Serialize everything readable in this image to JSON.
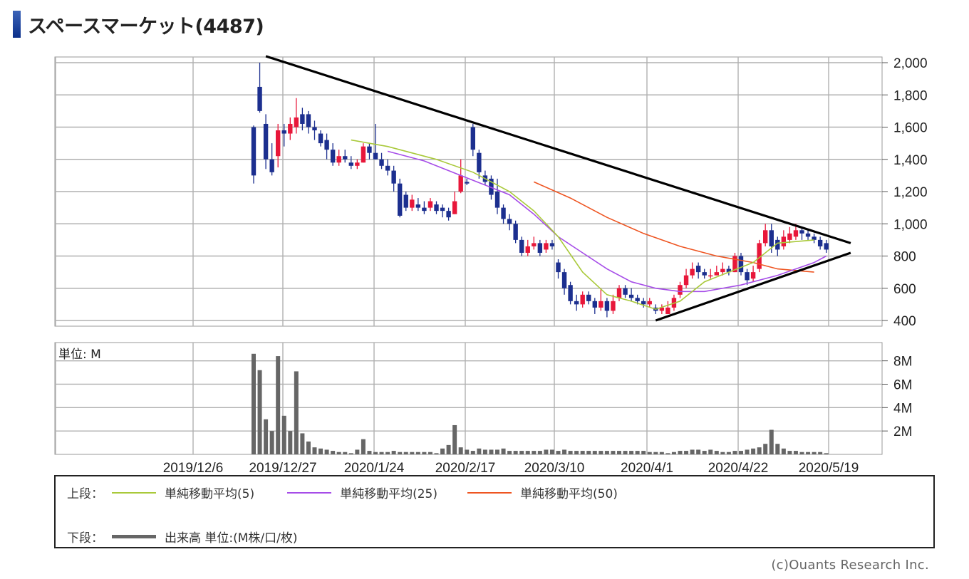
{
  "title": "スペースマーケット(4487)",
  "unit_label": "単位: M",
  "credit": "(c)Ouants Research Inc.",
  "legend": {
    "upper_label": "上段：",
    "lower_label": "下段：",
    "ma5": "単純移動平均(5)",
    "ma25": "単純移動平均(25)",
    "ma50": "単純移動平均(50)",
    "volume": "出来高 単位:(M株/口/枚)"
  },
  "colors": {
    "up": "#e8173a",
    "down": "#1c2f8f",
    "ma5": "#a9c93a",
    "ma25": "#a64de8",
    "ma50": "#ee5522",
    "volume": "#666666",
    "trendline": "#000000",
    "grid": "#b0b0b0"
  },
  "chart_data": [
    {
      "type": "candlestick",
      "y_ticks": [
        "2,000",
        "1,800",
        "1,600",
        "1,400",
        "1,200",
        "1,000",
        "800",
        "600",
        "400"
      ],
      "ylim": [
        400,
        2000
      ],
      "x_tick_labels": [
        "2019/12/6",
        "2019/12/27",
        "2020/1/24",
        "2020/2/17",
        "2020/3/10",
        "2020/4/1",
        "2020/4/22",
        "2020/5/19"
      ],
      "candles": [
        [
          1600,
          1300,
          1610,
          1250
        ],
        [
          1850,
          1700,
          2000,
          1690
        ],
        [
          1620,
          1400,
          1680,
          1340
        ],
        [
          1400,
          1320,
          1500,
          1300
        ],
        [
          1420,
          1580,
          1620,
          1350
        ],
        [
          1580,
          1560,
          1620,
          1480
        ],
        [
          1560,
          1620,
          1660,
          1520
        ],
        [
          1600,
          1660,
          1780,
          1560
        ],
        [
          1680,
          1620,
          1720,
          1580
        ],
        [
          1680,
          1600,
          1700,
          1560
        ],
        [
          1600,
          1580,
          1640,
          1520
        ],
        [
          1560,
          1500,
          1580,
          1480
        ],
        [
          1520,
          1460,
          1560,
          1400
        ],
        [
          1460,
          1380,
          1500,
          1360
        ],
        [
          1380,
          1420,
          1460,
          1360
        ],
        [
          1420,
          1400,
          1460,
          1380
        ],
        [
          1380,
          1360,
          1420,
          1340
        ],
        [
          1360,
          1380,
          1400,
          1340
        ],
        [
          1380,
          1480,
          1500,
          1380
        ],
        [
          1480,
          1440,
          1500,
          1400
        ],
        [
          1440,
          1400,
          1620,
          1400
        ],
        [
          1400,
          1360,
          1440,
          1340
        ],
        [
          1360,
          1330,
          1400,
          1300
        ],
        [
          1330,
          1250,
          1360,
          1200
        ],
        [
          1250,
          1050,
          1280,
          1040
        ],
        [
          1180,
          1100,
          1200,
          1080
        ],
        [
          1100,
          1150,
          1180,
          1080
        ],
        [
          1120,
          1100,
          1160,
          1080
        ],
        [
          1100,
          1080,
          1140,
          1060
        ],
        [
          1100,
          1140,
          1160,
          1080
        ],
        [
          1120,
          1080,
          1140,
          1060
        ],
        [
          1100,
          1080,
          1120,
          1040
        ],
        [
          1080,
          1040,
          1100,
          1020
        ],
        [
          1060,
          1140,
          1200,
          1060
        ],
        [
          1200,
          1300,
          1400,
          1190
        ],
        [
          1260,
          1250,
          1280,
          1240
        ],
        [
          1600,
          1460,
          1620,
          1420
        ],
        [
          1440,
          1320,
          1460,
          1280
        ],
        [
          1300,
          1260,
          1330,
          1240
        ],
        [
          1280,
          1180,
          1300,
          1150
        ],
        [
          1200,
          1100,
          1280,
          1060
        ],
        [
          1100,
          1030,
          1120,
          1000
        ],
        [
          1030,
          1000,
          1060,
          960
        ],
        [
          1000,
          900,
          1020,
          880
        ],
        [
          900,
          820,
          920,
          800
        ],
        [
          820,
          860,
          900,
          800
        ],
        [
          860,
          880,
          920,
          840
        ],
        [
          880,
          820,
          900,
          800
        ],
        [
          840,
          880,
          900,
          820
        ],
        [
          880,
          860,
          900,
          840
        ],
        [
          760,
          700,
          780,
          660
        ],
        [
          700,
          600,
          720,
          560
        ],
        [
          620,
          520,
          640,
          500
        ],
        [
          520,
          500,
          560,
          460
        ],
        [
          500,
          560,
          580,
          480
        ],
        [
          560,
          520,
          580,
          500
        ],
        [
          520,
          480,
          540,
          440
        ],
        [
          480,
          520,
          600,
          460
        ],
        [
          520,
          460,
          540,
          420
        ],
        [
          460,
          520,
          560,
          440
        ],
        [
          540,
          600,
          620,
          520
        ],
        [
          600,
          560,
          620,
          540
        ],
        [
          560,
          540,
          600,
          520
        ],
        [
          540,
          520,
          560,
          500
        ],
        [
          520,
          500,
          540,
          480
        ],
        [
          500,
          520,
          540,
          480
        ],
        [
          480,
          460,
          500,
          440
        ],
        [
          460,
          480,
          500,
          440
        ],
        [
          440,
          480,
          520,
          440
        ],
        [
          480,
          540,
          560,
          460
        ],
        [
          560,
          620,
          640,
          540
        ],
        [
          620,
          680,
          720,
          600
        ],
        [
          680,
          720,
          760,
          660
        ],
        [
          740,
          700,
          760,
          660
        ],
        [
          700,
          680,
          720,
          660
        ],
        [
          680,
          680,
          720,
          660
        ],
        [
          680,
          700,
          740,
          680
        ],
        [
          700,
          720,
          760,
          680
        ],
        [
          720,
          700,
          740,
          680
        ],
        [
          700,
          800,
          820,
          700
        ],
        [
          800,
          700,
          820,
          680
        ],
        [
          700,
          650,
          720,
          620
        ],
        [
          660,
          700,
          740,
          640
        ],
        [
          720,
          880,
          900,
          700
        ],
        [
          880,
          960,
          1000,
          860
        ],
        [
          960,
          860,
          1000,
          820
        ],
        [
          900,
          840,
          920,
          800
        ],
        [
          860,
          920,
          960,
          840
        ],
        [
          900,
          940,
          980,
          880
        ],
        [
          920,
          960,
          1000,
          900
        ],
        [
          960,
          940,
          980,
          900
        ],
        [
          940,
          920,
          960,
          900
        ],
        [
          920,
          900,
          940,
          880
        ],
        [
          900,
          860,
          920,
          840
        ],
        [
          880,
          840,
          900,
          820
        ]
      ],
      "ma5": [
        [
          16,
          1520
        ],
        [
          22,
          1480
        ],
        [
          30,
          1400
        ],
        [
          36,
          1320
        ],
        [
          42,
          1200
        ],
        [
          46,
          1080
        ],
        [
          50,
          920
        ],
        [
          54,
          700
        ],
        [
          58,
          560
        ],
        [
          62,
          520
        ],
        [
          66,
          470
        ],
        [
          70,
          520
        ],
        [
          74,
          640
        ],
        [
          78,
          700
        ],
        [
          82,
          760
        ],
        [
          86,
          880
        ],
        [
          92,
          900
        ]
      ],
      "ma25": [
        [
          22,
          1450
        ],
        [
          28,
          1390
        ],
        [
          34,
          1300
        ],
        [
          38,
          1240
        ],
        [
          42,
          1180
        ],
        [
          46,
          1060
        ],
        [
          50,
          920
        ],
        [
          54,
          820
        ],
        [
          58,
          720
        ],
        [
          62,
          640
        ],
        [
          66,
          600
        ],
        [
          70,
          580
        ],
        [
          74,
          580
        ],
        [
          80,
          620
        ],
        [
          86,
          680
        ],
        [
          92,
          760
        ],
        [
          94,
          800
        ]
      ],
      "ma50": [
        [
          46,
          1260
        ],
        [
          52,
          1160
        ],
        [
          58,
          1040
        ],
        [
          64,
          940
        ],
        [
          70,
          860
        ],
        [
          76,
          800
        ],
        [
          82,
          760
        ],
        [
          86,
          720
        ],
        [
          92,
          700
        ]
      ],
      "trendlines": [
        [
          [
            2,
            2040
          ],
          [
            98,
            880
          ]
        ],
        [
          [
            66,
            400
          ],
          [
            98,
            820
          ]
        ]
      ]
    },
    {
      "type": "bar",
      "name": "出来高",
      "y_ticks": [
        "8M",
        "6M",
        "4M",
        "2M"
      ],
      "ylim": [
        0,
        9
      ],
      "volume": [
        8.6,
        7.2,
        3.0,
        2.0,
        8.4,
        3.3,
        2.0,
        7.1,
        1.8,
        1.1,
        0.6,
        0.5,
        0.4,
        0.3,
        0.2,
        0.2,
        0.1,
        0.4,
        1.3,
        0.3,
        0.2,
        0.2,
        0.2,
        0.3,
        0.2,
        0.2,
        0.2,
        0.2,
        0.2,
        0.2,
        0.1,
        0.5,
        0.8,
        2.5,
        0.6,
        0.4,
        0.3,
        0.5,
        0.4,
        0.4,
        0.4,
        0.5,
        0.3,
        0.3,
        0.3,
        0.3,
        0.3,
        0.3,
        0.4,
        0.4,
        0.3,
        0.4,
        0.3,
        0.3,
        0.3,
        0.3,
        0.3,
        0.3,
        0.3,
        0.3,
        0.3,
        0.3,
        0.3,
        0.3,
        0.3,
        0.2,
        0.2,
        0.2,
        0.1,
        0.2,
        0.3,
        0.3,
        0.4,
        0.4,
        0.3,
        0.4,
        0.3,
        0.2,
        0.2,
        0.3,
        0.3,
        0.4,
        0.5,
        0.6,
        0.9,
        2.1,
        0.9,
        0.5,
        0.3,
        0.3,
        0.2,
        0.2,
        0.2,
        0.2,
        0.1
      ]
    }
  ]
}
